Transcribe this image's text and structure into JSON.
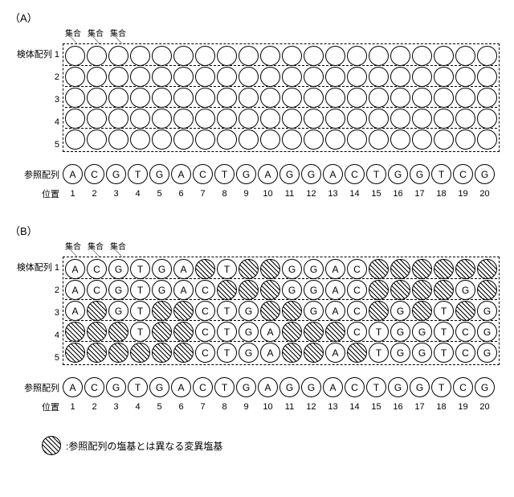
{
  "columns": 20,
  "rows": 5,
  "reference": [
    "A",
    "C",
    "G",
    "T",
    "G",
    "A",
    "C",
    "T",
    "G",
    "A",
    "G",
    "G",
    "A",
    "C",
    "T",
    "G",
    "G",
    "T",
    "C",
    "G"
  ],
  "col_header_label": "集合",
  "col_header_count": 3,
  "tick_glyph": "＼",
  "labels": {
    "sample_sequence": "検体配列",
    "reference_sequence": "参照配列",
    "position": "位置",
    "legend": ":参照配列の塩基とは異なる変異塩基"
  },
  "panels": [
    {
      "id": "A",
      "title": "（A）",
      "rows": [
        {
          "label": "1",
          "cells": [
            {
              "h": 0
            },
            {
              "h": 0
            },
            {
              "h": 0
            },
            {
              "h": 0
            },
            {
              "h": 0
            },
            {
              "h": 0
            },
            {
              "h": 0
            },
            {
              "h": 0
            },
            {
              "h": 0
            },
            {
              "h": 0
            },
            {
              "h": 0
            },
            {
              "h": 0
            },
            {
              "h": 0
            },
            {
              "h": 0
            },
            {
              "h": 0
            },
            {
              "h": 0
            },
            {
              "h": 0
            },
            {
              "h": 0
            },
            {
              "h": 0
            },
            {
              "h": 0
            }
          ]
        },
        {
          "label": "2",
          "cells": [
            {
              "h": 0
            },
            {
              "h": 0
            },
            {
              "h": 0
            },
            {
              "h": 0
            },
            {
              "h": 0
            },
            {
              "h": 0
            },
            {
              "h": 0
            },
            {
              "h": 0
            },
            {
              "h": 0
            },
            {
              "h": 0
            },
            {
              "h": 0
            },
            {
              "h": 0
            },
            {
              "h": 0
            },
            {
              "h": 0
            },
            {
              "h": 0
            },
            {
              "h": 0
            },
            {
              "h": 0
            },
            {
              "h": 0
            },
            {
              "h": 0
            },
            {
              "h": 0
            }
          ]
        },
        {
          "label": "3",
          "cells": [
            {
              "h": 0
            },
            {
              "h": 0
            },
            {
              "h": 0
            },
            {
              "h": 0
            },
            {
              "h": 0
            },
            {
              "h": 0
            },
            {
              "h": 0
            },
            {
              "h": 0
            },
            {
              "h": 0
            },
            {
              "h": 0
            },
            {
              "h": 0
            },
            {
              "h": 0
            },
            {
              "h": 0
            },
            {
              "h": 0
            },
            {
              "h": 0
            },
            {
              "h": 0
            },
            {
              "h": 0
            },
            {
              "h": 0
            },
            {
              "h": 0
            },
            {
              "h": 0
            }
          ]
        },
        {
          "label": "4",
          "cells": [
            {
              "h": 0
            },
            {
              "h": 0
            },
            {
              "h": 0
            },
            {
              "h": 0
            },
            {
              "h": 0
            },
            {
              "h": 0
            },
            {
              "h": 0
            },
            {
              "h": 0
            },
            {
              "h": 0
            },
            {
              "h": 0
            },
            {
              "h": 0
            },
            {
              "h": 0
            },
            {
              "h": 0
            },
            {
              "h": 0
            },
            {
              "h": 0
            },
            {
              "h": 0
            },
            {
              "h": 0
            },
            {
              "h": 0
            },
            {
              "h": 0
            },
            {
              "h": 0
            }
          ]
        },
        {
          "label": "5",
          "cells": [
            {
              "h": 0
            },
            {
              "h": 0
            },
            {
              "h": 0
            },
            {
              "h": 0
            },
            {
              "h": 0
            },
            {
              "h": 0
            },
            {
              "h": 0
            },
            {
              "h": 0
            },
            {
              "h": 0
            },
            {
              "h": 0
            },
            {
              "h": 0
            },
            {
              "h": 0
            },
            {
              "h": 0
            },
            {
              "h": 0
            },
            {
              "h": 0
            },
            {
              "h": 0
            },
            {
              "h": 0
            },
            {
              "h": 0
            },
            {
              "h": 0
            },
            {
              "h": 0
            }
          ]
        }
      ]
    },
    {
      "id": "B",
      "title": "（B）",
      "rows": [
        {
          "label": "1",
          "cells": [
            {
              "t": "A",
              "h": 0
            },
            {
              "t": "C",
              "h": 0
            },
            {
              "t": "G",
              "h": 0
            },
            {
              "t": "T",
              "h": 0
            },
            {
              "t": "G",
              "h": 0
            },
            {
              "t": "A",
              "h": 0
            },
            {
              "h": 1
            },
            {
              "t": "T",
              "h": 0
            },
            {
              "h": 1
            },
            {
              "h": 1
            },
            {
              "t": "G",
              "h": 0
            },
            {
              "t": "G",
              "h": 0
            },
            {
              "t": "A",
              "h": 0
            },
            {
              "t": "C",
              "h": 0
            },
            {
              "h": 1
            },
            {
              "h": 1
            },
            {
              "h": 1
            },
            {
              "h": 1
            },
            {
              "h": 1
            },
            {
              "h": 1
            }
          ]
        },
        {
          "label": "2",
          "cells": [
            {
              "t": "A",
              "h": 0
            },
            {
              "t": "C",
              "h": 0
            },
            {
              "t": "G",
              "h": 0
            },
            {
              "t": "T",
              "h": 0
            },
            {
              "t": "G",
              "h": 0
            },
            {
              "t": "A",
              "h": 0
            },
            {
              "t": "C",
              "h": 0
            },
            {
              "h": 1
            },
            {
              "h": 1
            },
            {
              "h": 1
            },
            {
              "t": "G",
              "h": 0
            },
            {
              "t": "G",
              "h": 0
            },
            {
              "t": "A",
              "h": 0
            },
            {
              "t": "C",
              "h": 0
            },
            {
              "h": 1
            },
            {
              "h": 1
            },
            {
              "h": 1
            },
            {
              "h": 1
            },
            {
              "t": "G",
              "h": 0
            },
            {
              "h": 1
            }
          ]
        },
        {
          "label": "3",
          "cells": [
            {
              "t": "A",
              "h": 0
            },
            {
              "h": 1
            },
            {
              "t": "G",
              "h": 0
            },
            {
              "t": "T",
              "h": 0
            },
            {
              "h": 1
            },
            {
              "h": 1
            },
            {
              "t": "C",
              "h": 0
            },
            {
              "t": "T",
              "h": 0
            },
            {
              "t": "G",
              "h": 0
            },
            {
              "h": 1
            },
            {
              "h": 1
            },
            {
              "t": "G",
              "h": 0
            },
            {
              "t": "A",
              "h": 0
            },
            {
              "t": "C",
              "h": 0
            },
            {
              "h": 1
            },
            {
              "t": "G",
              "h": 0
            },
            {
              "h": 1
            },
            {
              "t": "T",
              "h": 0
            },
            {
              "h": 1
            },
            {
              "t": "G",
              "h": 0
            }
          ]
        },
        {
          "label": "4",
          "cells": [
            {
              "h": 1
            },
            {
              "h": 1
            },
            {
              "h": 1
            },
            {
              "t": "T",
              "h": 0
            },
            {
              "h": 1
            },
            {
              "h": 1
            },
            {
              "t": "C",
              "h": 0
            },
            {
              "t": "T",
              "h": 0
            },
            {
              "t": "G",
              "h": 0
            },
            {
              "t": "A",
              "h": 0
            },
            {
              "h": 1
            },
            {
              "h": 1
            },
            {
              "h": 1
            },
            {
              "t": "C",
              "h": 0
            },
            {
              "t": "T",
              "h": 0
            },
            {
              "t": "G",
              "h": 0
            },
            {
              "t": "G",
              "h": 0
            },
            {
              "t": "T",
              "h": 0
            },
            {
              "t": "C",
              "h": 0
            },
            {
              "t": "G",
              "h": 0
            }
          ]
        },
        {
          "label": "5",
          "cells": [
            {
              "h": 1
            },
            {
              "h": 1
            },
            {
              "h": 1
            },
            {
              "h": 1
            },
            {
              "h": 1
            },
            {
              "h": 1
            },
            {
              "t": "C",
              "h": 0
            },
            {
              "t": "T",
              "h": 0
            },
            {
              "t": "G",
              "h": 0
            },
            {
              "t": "A",
              "h": 0
            },
            {
              "h": 1
            },
            {
              "h": 1
            },
            {
              "t": "A",
              "h": 0
            },
            {
              "h": 1
            },
            {
              "t": "T",
              "h": 0
            },
            {
              "t": "G",
              "h": 0
            },
            {
              "t": "G",
              "h": 0
            },
            {
              "t": "T",
              "h": 0
            },
            {
              "t": "C",
              "h": 0
            },
            {
              "t": "G",
              "h": 0
            }
          ]
        }
      ]
    }
  ]
}
